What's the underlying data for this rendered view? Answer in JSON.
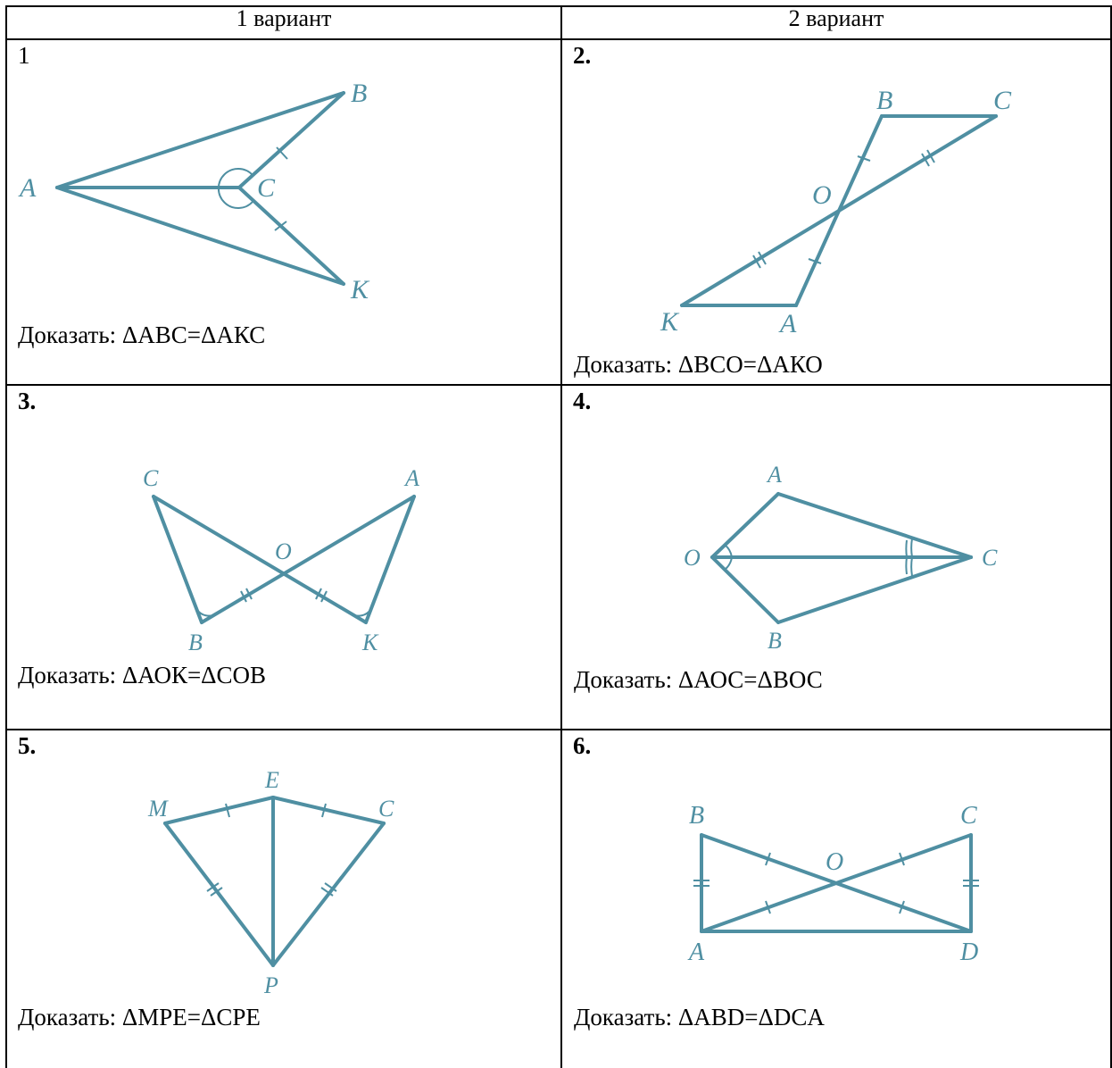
{
  "table": {
    "col1_header": "1 вариант",
    "col2_header": "2 вариант"
  },
  "cells": [
    {
      "number": "1",
      "prove": "Доказать: ΔАВС=ΔАКС",
      "labels": {
        "A": "A",
        "B": "B",
        "C": "C",
        "K": "K"
      }
    },
    {
      "number": "2.",
      "prove": "Доказать: ΔВСО=ΔАКО",
      "labels": {
        "B": "B",
        "C": "C",
        "O": "O",
        "K": "K",
        "A": "A"
      }
    },
    {
      "number": "3.",
      "prove": "Доказать: ΔАОК=ΔСОВ",
      "labels": {
        "C": "C",
        "A": "A",
        "O": "O",
        "B": "B",
        "K": "K"
      }
    },
    {
      "number": "4.",
      "prove": "Доказать: ΔАОС=ΔВОС",
      "labels": {
        "A": "A",
        "O": "O",
        "C": "C",
        "B": "B"
      }
    },
    {
      "number": "5.",
      "prove": "Доказать: ΔМРЕ=ΔСРЕ",
      "labels": {
        "E": "E",
        "M": "M",
        "C": "C",
        "P": "P"
      }
    },
    {
      "number": "6.",
      "prove": "Доказать: ΔАВD=ΔDCA",
      "labels": {
        "B": "B",
        "C": "C",
        "O": "O",
        "A": "A",
        "D": "D"
      }
    }
  ],
  "colors": {
    "figure": "#4f8fa2",
    "border": "#000000"
  }
}
